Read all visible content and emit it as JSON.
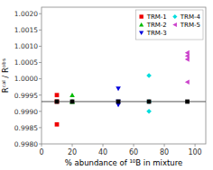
{
  "chart_data": {
    "type": "scatter",
    "xlabel": "% abundance of ¹⁰B in mixture",
    "ylabel": "Rᶜᵃˡ / Rᵒᵇˢ",
    "xlim": [
      0,
      107
    ],
    "ylim": [
      0.998,
      1.0022
    ],
    "xticks": [
      0,
      20,
      40,
      60,
      80,
      100
    ],
    "yticks": [
      {
        "value": 0.998,
        "label": "0.9980"
      },
      0.9985,
      {
        "value": 0.999,
        "label": "0.9990"
      },
      0.9995,
      {
        "value": 1.0,
        "label": "1.0000"
      },
      1.0005,
      {
        "value": 1.001,
        "label": "1.0010"
      },
      1.0015,
      {
        "value": 1.002,
        "label": "1.0020"
      }
    ],
    "legend": "upper right",
    "reference_line": {
      "y": 0.9993,
      "color": "#555555"
    },
    "reference_points": {
      "x": [
        10,
        20,
        50,
        70,
        95
      ],
      "values": [
        0.9993,
        0.9993,
        0.9993,
        0.9993,
        0.9993
      ],
      "color": "#000000",
      "marker": "square"
    },
    "series": [
      {
        "name": "TRM-1",
        "color": "#ee0000",
        "marker": "square",
        "x": [
          10,
          10,
          10
        ],
        "values": [
          0.9995,
          0.9993,
          0.9986
        ]
      },
      {
        "name": "TRM-2",
        "color": "#00bb00",
        "marker": "triangle-up",
        "x": [
          20,
          20,
          20
        ],
        "values": [
          0.9995,
          0.9993,
          0.9993
        ]
      },
      {
        "name": "TRM-3",
        "color": "#0000dd",
        "marker": "triangle-down",
        "x": [
          50,
          50,
          50
        ],
        "values": [
          0.9997,
          0.9993,
          0.9992
        ]
      },
      {
        "name": "TRM-4",
        "color": "#00dddd",
        "marker": "diamond",
        "x": [
          70,
          70,
          70
        ],
        "values": [
          1.0001,
          0.9993,
          0.999
        ]
      },
      {
        "name": "TRM-5",
        "color": "#cc44cc",
        "marker": "triangle-left",
        "x": [
          95,
          95,
          95,
          95
        ],
        "values": [
          1.0008,
          1.0007,
          1.0006,
          0.9999
        ]
      }
    ]
  }
}
